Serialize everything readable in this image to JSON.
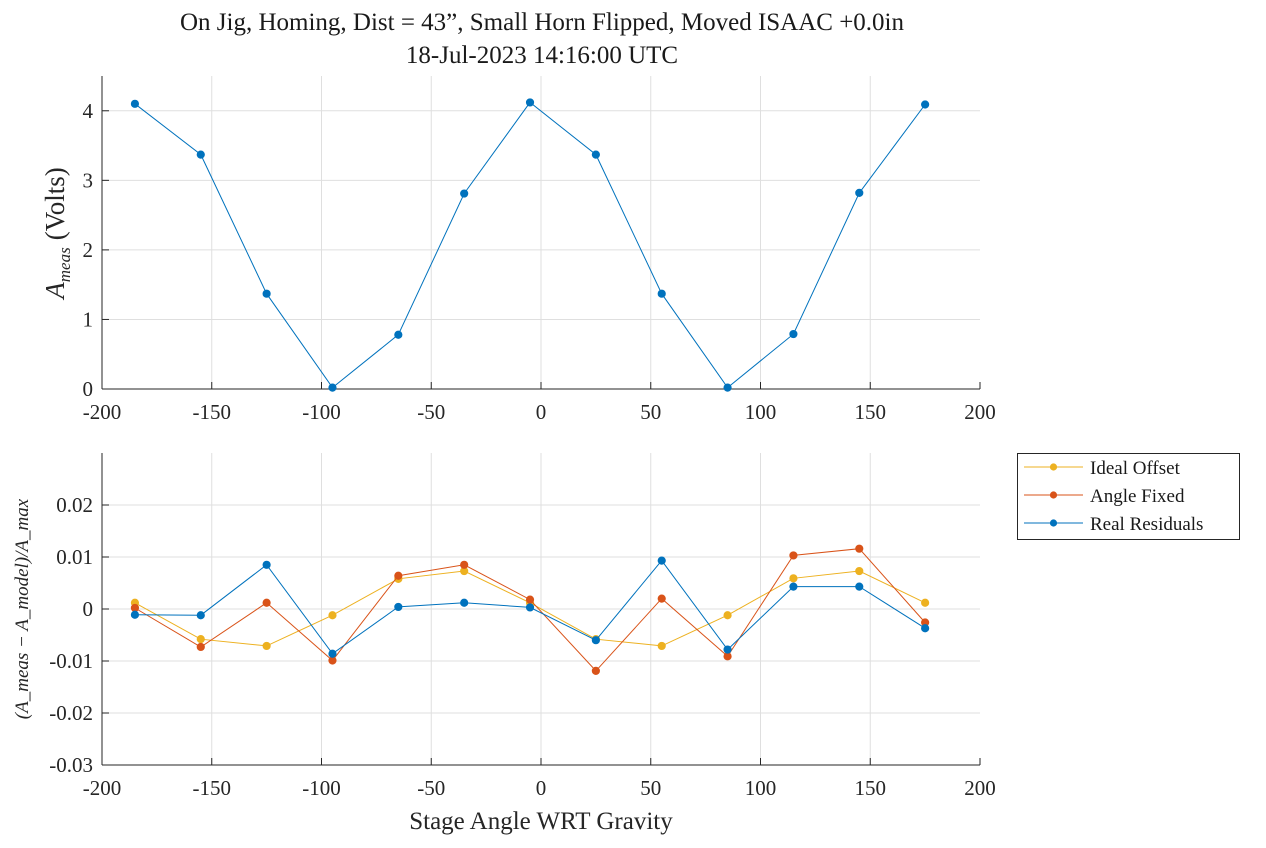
{
  "figure": {
    "title_line1": "On Jig, Homing, Dist = 43”, Small Horn Flipped, Moved ISAAC +0.0in",
    "title_line2": "18-Jul-2023 14:16:00 UTC"
  },
  "chart_data": [
    {
      "type": "line",
      "title": "On Jig, Homing, Dist = 43”, Small Horn Flipped, Moved ISAAC +0.0in 18-Jul-2023 14:16:00 UTC",
      "xlabel": "",
      "ylabel": "A_meas (Volts)",
      "ylabel_main": "A",
      "ylabel_sub": "meas",
      "ylabel_unit": "(Volts)",
      "xlim": [
        -200,
        200
      ],
      "ylim": [
        0,
        4.5
      ],
      "xticks": [
        -200,
        -150,
        -100,
        -50,
        0,
        50,
        100,
        150,
        200
      ],
      "yticks": [
        0,
        1,
        2,
        3,
        4
      ],
      "xtick_labels": [
        "-200",
        "-150",
        "-100",
        "-50",
        "0",
        "50",
        "100",
        "150",
        "200"
      ],
      "ytick_labels": [
        "0",
        "1",
        "2",
        "3",
        "4"
      ],
      "grid": true,
      "x": [
        -185,
        -155,
        -125,
        -95,
        -65,
        -35,
        -5,
        25,
        55,
        85,
        115,
        145,
        175
      ],
      "series": [
        {
          "color": "#0072BD",
          "values": [
            4.1,
            3.37,
            1.37,
            0.02,
            0.78,
            2.81,
            4.12,
            3.37,
            1.37,
            0.02,
            0.79,
            2.82,
            4.09
          ]
        }
      ]
    },
    {
      "type": "line",
      "xlabel": "Stage Angle WRT Gravity",
      "ylabel": "(A_meas − A_model)/A_max",
      "xlim": [
        -200,
        200
      ],
      "ylim": [
        -0.03,
        0.03
      ],
      "xticks": [
        -200,
        -150,
        -100,
        -50,
        0,
        50,
        100,
        150,
        200
      ],
      "yticks": [
        -0.03,
        -0.02,
        -0.01,
        0,
        0.01,
        0.02
      ],
      "xtick_labels": [
        "-200",
        "-150",
        "-100",
        "-50",
        "0",
        "50",
        "100",
        "150",
        "200"
      ],
      "ytick_labels": [
        "-0.03",
        "-0.02",
        "-0.01",
        "0",
        "0.01",
        "0.02"
      ],
      "grid": true,
      "legend_position": "outside-right-top",
      "x": [
        -185,
        -155,
        -125,
        -95,
        -65,
        -35,
        -5,
        25,
        55,
        85,
        115,
        145,
        175
      ],
      "series": [
        {
          "name": "Ideal Offset",
          "color": "#EDB120",
          "values": [
            0.0012,
            -0.0058,
            -0.0071,
            -0.0012,
            0.0058,
            0.0073,
            0.0012,
            -0.0058,
            -0.0071,
            -0.0012,
            0.0059,
            0.0073,
            0.0012
          ]
        },
        {
          "name": "Angle Fixed",
          "color": "#D95319",
          "values": [
            0.0002,
            -0.0073,
            0.0012,
            -0.0099,
            0.0064,
            0.0085,
            0.0018,
            -0.0119,
            0.002,
            -0.0091,
            0.0103,
            0.0116,
            -0.0026
          ]
        },
        {
          "name": "Real Residuals",
          "color": "#0072BD",
          "values": [
            -0.0011,
            -0.0012,
            0.0085,
            -0.0086,
            0.0004,
            0.0012,
            0.0003,
            -0.006,
            0.0093,
            -0.0078,
            0.0043,
            0.0043,
            -0.0037
          ]
        }
      ]
    }
  ]
}
